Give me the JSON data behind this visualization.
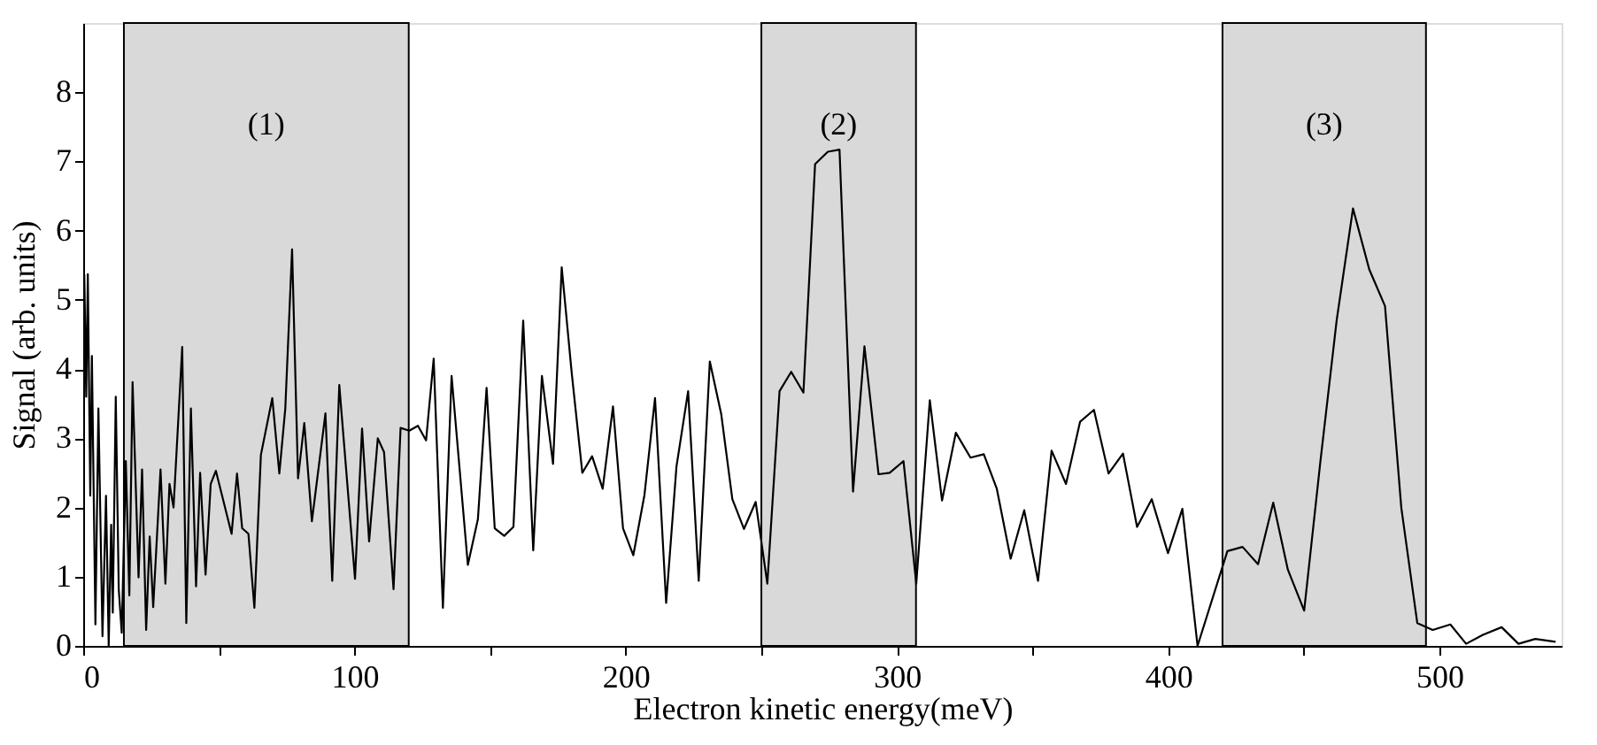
{
  "chart_data": {
    "type": "line",
    "xlabel": "Electron kinetic energy(meV)",
    "ylabel": "Signal (arb. units)",
    "xlim": [
      0,
      545
    ],
    "ylim": [
      0,
      9
    ],
    "xticks": [
      0,
      {
        "value": 50,
        "label": null
      },
      100,
      {
        "value": 150,
        "label": null
      },
      200,
      {
        "value": 250,
        "label": null
      },
      300,
      {
        "value": 350,
        "label": null
      },
      400,
      {
        "value": 450,
        "label": null
      },
      500
    ],
    "yticks": [
      0,
      1,
      2,
      3,
      4,
      5,
      6,
      7,
      8
    ],
    "grid": false,
    "marker": "none",
    "line_style": "solid",
    "bands": [
      {
        "axis": "x",
        "from": 15,
        "to": 120,
        "label": "(1)",
        "color": "#d9d9d9"
      },
      {
        "axis": "x",
        "from": 250,
        "to": 307,
        "label": "(2)",
        "color": "#d9d9d9"
      },
      {
        "axis": "x",
        "from": 420,
        "to": 495,
        "label": "(3)",
        "color": "#d9d9d9"
      }
    ],
    "series": [
      {
        "color": "#000000",
        "x": [
          0.4,
          1.1,
          1.7,
          2.6,
          3.2,
          4.5,
          5.6,
          7.1,
          8.4,
          9.4,
          10.3,
          10.9,
          12.0,
          13.1,
          14.2,
          15.7,
          17.0,
          18.2,
          20.4,
          21.7,
          23.2,
          24.5,
          25.8,
          28.5,
          30.3,
          31.8,
          33.3,
          36.5,
          38.0,
          39.7,
          41.6,
          43.1,
          45.1,
          47.0,
          48.9,
          54.7,
          56.7,
          58.6,
          60.9,
          63.1,
          65.5,
          69.7,
          72.3,
          74.5,
          77.0,
          79.2,
          81.5,
          84.3,
          89.3,
          91.8,
          94.4,
          100.2,
          102.8,
          105.4,
          108.6,
          110.9,
          114.4,
          117.0,
          120.2,
          123.4,
          126.4,
          129.2,
          132.6,
          135.8,
          141.8,
          145.5,
          148.7,
          151.7,
          155.2,
          158.6,
          162.2,
          165.9,
          169.1,
          173.2,
          176.4,
          180.1,
          184.0,
          187.6,
          191.5,
          195.3,
          199.0,
          202.8,
          206.9,
          210.8,
          214.9,
          218.7,
          223.0,
          226.9,
          231.0,
          235.2,
          239.3,
          243.6,
          247.9,
          252.2,
          256.7,
          261.0,
          265.5,
          269.8,
          274.5,
          278.8,
          283.8,
          288.0,
          293.2,
          297.3,
          302.4,
          307.1,
          312.1,
          316.6,
          321.7,
          327.1,
          332.0,
          336.8,
          341.9,
          346.9,
          352.0,
          357.0,
          362.3,
          367.5,
          372.6,
          378.0,
          383.3,
          388.5,
          393.9,
          399.9,
          405.2,
          410.8,
          421.8,
          427.4,
          433.1,
          438.7,
          444.1,
          450.1,
          456.1,
          462.1,
          468.1,
          474.1,
          479.9,
          485.9,
          491.8,
          497.5,
          504.0,
          509.8,
          516.0,
          522.9,
          529.1,
          535.3,
          542.8
        ],
        "values": [
          5.37,
          3.6,
          5.37,
          2.17,
          4.19,
          0.31,
          3.43,
          0.14,
          2.17,
          0.0,
          1.75,
          0.48,
          3.6,
          0.82,
          0.19,
          2.67,
          0.73,
          3.81,
          0.99,
          2.55,
          0.23,
          1.58,
          0.56,
          2.55,
          0.9,
          2.34,
          2.0,
          4.32,
          0.33,
          3.43,
          0.86,
          2.5,
          1.03,
          2.34,
          2.53,
          1.62,
          2.49,
          1.7,
          1.62,
          0.55,
          2.76,
          3.58,
          2.49,
          3.43,
          5.73,
          2.42,
          3.22,
          1.8,
          3.36,
          0.94,
          3.77,
          0.97,
          3.14,
          1.51,
          3.0,
          2.8,
          0.82,
          3.15,
          3.11,
          3.18,
          2.97,
          4.15,
          0.55,
          3.9,
          1.17,
          1.83,
          3.73,
          1.7,
          1.59,
          1.72,
          4.7,
          1.38,
          3.9,
          2.63,
          5.47,
          3.94,
          2.5,
          2.74,
          2.27,
          3.46,
          1.7,
          1.31,
          2.18,
          3.58,
          0.62,
          2.59,
          3.68,
          0.94,
          4.11,
          3.35,
          2.12,
          1.69,
          2.08,
          0.9,
          3.68,
          3.96,
          3.66,
          6.96,
          7.14,
          7.17,
          2.23,
          4.33,
          2.48,
          2.5,
          2.67,
          0.9,
          3.55,
          2.1,
          3.08,
          2.72,
          2.77,
          2.27,
          1.26,
          1.96,
          0.94,
          2.82,
          2.34,
          3.24,
          3.41,
          2.49,
          2.78,
          1.72,
          2.12,
          1.34,
          1.98,
          0.0,
          1.37,
          1.43,
          1.18,
          2.07,
          1.1,
          0.51,
          2.67,
          4.71,
          6.32,
          5.44,
          4.91,
          2.0,
          0.33,
          0.23,
          0.31,
          0.03,
          0.16,
          0.27,
          0.03,
          0.1,
          0.06
        ]
      }
    ]
  }
}
